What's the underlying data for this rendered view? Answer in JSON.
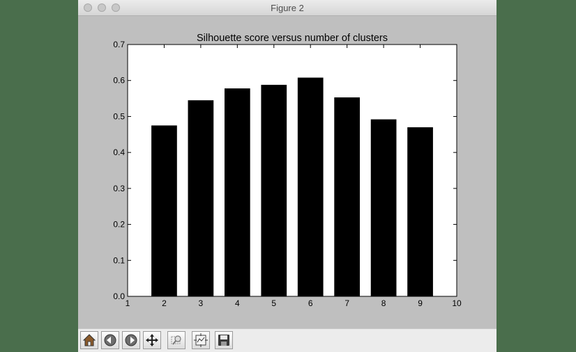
{
  "window": {
    "title": "Figure 2"
  },
  "toolbar": {
    "buttons": [
      {
        "icon": "home-icon"
      },
      {
        "icon": "back-icon"
      },
      {
        "icon": "forward-icon"
      },
      {
        "icon": "pan-icon"
      },
      {
        "icon": "zoom-icon"
      },
      {
        "icon": "subplots-icon"
      },
      {
        "icon": "save-icon"
      }
    ]
  },
  "chart_data": {
    "type": "bar",
    "title": "Silhouette score versus number of clusters",
    "xlabel": "",
    "ylabel": "",
    "x": [
      2,
      3,
      4,
      5,
      6,
      7,
      8,
      9
    ],
    "values": [
      0.475,
      0.545,
      0.578,
      0.588,
      0.608,
      0.553,
      0.492,
      0.47
    ],
    "xlim": [
      1,
      10
    ],
    "ylim": [
      0.0,
      0.7
    ],
    "xticks": [
      "1",
      "2",
      "3",
      "4",
      "5",
      "6",
      "7",
      "8",
      "9",
      "10"
    ],
    "yticks": [
      "0.0",
      "0.1",
      "0.2",
      "0.3",
      "0.4",
      "0.5",
      "0.6",
      "0.7"
    ],
    "bar_color": "#000000",
    "grid": false,
    "legend": "none"
  }
}
